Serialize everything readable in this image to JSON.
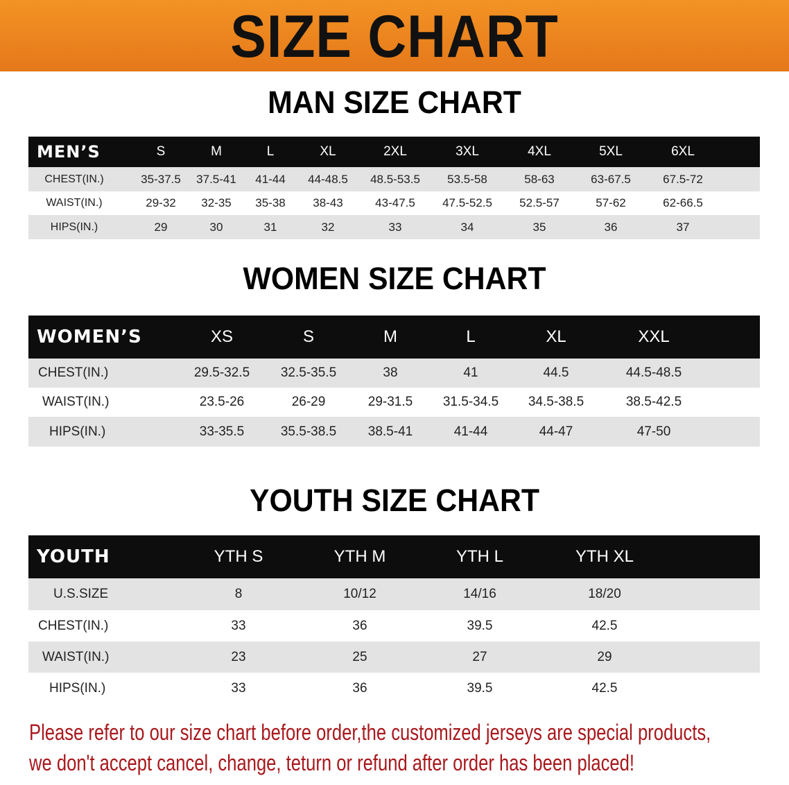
{
  "banner": {
    "title": "SIZE CHART",
    "color": "#ef8a20"
  },
  "men": {
    "title": "MAN SIZE CHART",
    "header_label": "MEN’S",
    "sizes": [
      "S",
      "M",
      "L",
      "XL",
      "2XL",
      "3XL",
      "4XL",
      "5XL",
      "6XL"
    ],
    "rows": [
      {
        "label": "CHEST(IN.)",
        "values": [
          "35-37.5",
          "37.5-41",
          "41-44",
          "44-48.5",
          "48.5-53.5",
          "53.5-58",
          "58-63",
          "63-67.5",
          "67.5-72"
        ]
      },
      {
        "label": "WAIST(IN.)",
        "values": [
          "29-32",
          "32-35",
          "35-38",
          "38-43",
          "43-47.5",
          "47.5-52.5",
          "52.5-57",
          "57-62",
          "62-66.5"
        ]
      },
      {
        "label": "HIPS(IN.)",
        "values": [
          "29",
          "30",
          "31",
          "32",
          "33",
          "34",
          "35",
          "36",
          "37"
        ]
      }
    ]
  },
  "women": {
    "title": "WOMEN SIZE CHART",
    "header_label": "WOMEN’S",
    "sizes": [
      "XS",
      "S",
      "M",
      "L",
      "XL",
      "XXL"
    ],
    "rows": [
      {
        "label": "CHEST(IN.)",
        "values": [
          "29.5-32.5",
          "32.5-35.5",
          "38",
          "41",
          "44.5",
          "44.5-48.5"
        ]
      },
      {
        "label": "WAIST(IN.)",
        "values": [
          "23.5-26",
          "26-29",
          "29-31.5",
          "31.5-34.5",
          "34.5-38.5",
          "38.5-42.5"
        ]
      },
      {
        "label": "HIPS(IN.)",
        "values": [
          "33-35.5",
          "35.5-38.5",
          "38.5-41",
          "41-44",
          "44-47",
          "47-50"
        ]
      }
    ]
  },
  "youth": {
    "title": "YOUTH SIZE CHART",
    "header_label": "YOUTH",
    "sizes": [
      "YTH S",
      "YTH M",
      "YTH L",
      "YTH XL"
    ],
    "rows": [
      {
        "label": "U.S.SIZE",
        "values": [
          "8",
          "10/12",
          "14/16",
          "18/20"
        ]
      },
      {
        "label": "CHEST(IN.)",
        "values": [
          "33",
          "36",
          "39.5",
          "42.5"
        ]
      },
      {
        "label": "WAIST(IN.)",
        "values": [
          "23",
          "25",
          "27",
          "29"
        ]
      },
      {
        "label": "HIPS(IN.)",
        "values": [
          "33",
          "36",
          "39.5",
          "42.5"
        ]
      }
    ]
  },
  "note": {
    "line1": "Please refer to our size chart before order,the customized jerseys are special products,",
    "line2": "we don't accept cancel, change, teturn or refund after order has been placed!",
    "color": "#a8181c"
  },
  "chart_data": {
    "type": "table",
    "title": "SIZE CHART",
    "tables": [
      {
        "title": "MAN SIZE CHART",
        "columns": [
          "MEN’S",
          "S",
          "M",
          "L",
          "XL",
          "2XL",
          "3XL",
          "4XL",
          "5XL",
          "6XL"
        ]
      },
      {
        "title": "WOMEN SIZE CHART",
        "columns": [
          "WOMEN’S",
          "XS",
          "S",
          "M",
          "L",
          "XL",
          "XXL"
        ]
      },
      {
        "title": "YOUTH SIZE CHART",
        "columns": [
          "YOUTH",
          "YTH S",
          "YTH M",
          "YTH L",
          "YTH XL"
        ]
      }
    ]
  }
}
